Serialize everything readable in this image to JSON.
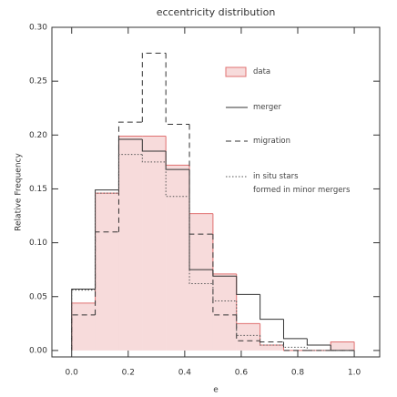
{
  "chart_data": {
    "type": "step-histogram",
    "title": "eccentricity distribution",
    "x_label": "e",
    "y_label": "Relative Frequency",
    "bins": [
      0,
      0.0833,
      0.1667,
      0.25,
      0.3333,
      0.4167,
      0.5,
      0.5833,
      0.6667,
      0.75,
      0.8333,
      0.9167,
      1.0
    ],
    "series": [
      {
        "name": "data",
        "color": "#e07070",
        "style": "filled",
        "values": [
          0.044,
          0.146,
          0.199,
          0.199,
          0.172,
          0.127,
          0.071,
          0.025,
          0.005,
          0.0,
          0.0,
          0.008
        ]
      },
      {
        "name": "merger",
        "color": "#333333",
        "style": "solid",
        "values": [
          0.057,
          0.149,
          0.196,
          0.185,
          0.168,
          0.075,
          0.069,
          0.052,
          0.029,
          0.011,
          0.005,
          0.0
        ]
      },
      {
        "name": "migration",
        "color": "#333333",
        "style": "dashed",
        "values": [
          0.033,
          0.11,
          0.212,
          0.276,
          0.21,
          0.108,
          0.033,
          0.009,
          0.008,
          0.0,
          0.0,
          0.0
        ]
      },
      {
        "name": "in situ stars\nformed in minor mergers",
        "color": "#555555",
        "style": "dotted",
        "values": [
          0.056,
          0.146,
          0.182,
          0.175,
          0.143,
          0.062,
          0.046,
          0.014,
          0.005,
          0.003,
          0.0,
          0.0
        ]
      }
    ],
    "xlim": [
      -0.07,
      1.09
    ],
    "ylim": [
      -0.006,
      0.3
    ],
    "xticks": [
      {
        "value": 0,
        "label": "0.0"
      },
      {
        "value": 0.2,
        "label": "0.2"
      },
      {
        "value": 0.4,
        "label": "0.4"
      },
      {
        "value": 0.6,
        "label": "0.6"
      },
      {
        "value": 0.8,
        "label": "0.8"
      },
      {
        "value": 1,
        "label": "1.0"
      }
    ],
    "yticks": [
      {
        "value": 0,
        "label": "0.00"
      },
      {
        "value": 0.05,
        "label": "0.05"
      },
      {
        "value": 0.1,
        "label": "0.10"
      },
      {
        "value": 0.15,
        "label": "0.15"
      },
      {
        "value": 0.2,
        "label": "0.20"
      },
      {
        "value": 0.25,
        "label": "0.25"
      },
      {
        "value": 0.3,
        "label": "0.30"
      }
    ]
  }
}
